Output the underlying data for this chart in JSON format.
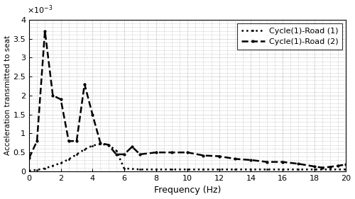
{
  "title": "",
  "xlabel": "Frequency (Hz)",
  "ylabel": "Acceleration transmitted to seat",
  "xlim": [
    0,
    20
  ],
  "ylim": [
    0,
    0.004
  ],
  "yticks": [
    0,
    0.0005,
    0.001,
    0.0015,
    0.002,
    0.0025,
    0.003,
    0.0035,
    0.004
  ],
  "ytick_labels": [
    "0",
    "0.5",
    "1",
    "1.5",
    "2",
    "2.5",
    "3",
    "3.5",
    "4"
  ],
  "xticks": [
    0,
    2,
    4,
    6,
    8,
    10,
    12,
    14,
    16,
    18,
    20
  ],
  "road1_x": [
    0,
    0.5,
    1.0,
    1.5,
    2.0,
    2.5,
    3.0,
    3.5,
    4.0,
    4.5,
    5.0,
    5.5,
    6.0,
    7.0,
    8.0,
    9.0,
    10.0,
    11.0,
    12.0,
    13.0,
    14.0,
    15.0,
    16.0,
    17.0,
    18.0,
    19.0,
    20.0
  ],
  "road1_y": [
    2e-05,
    4e-05,
    8e-05,
    0.00015,
    0.00022,
    0.00032,
    0.00045,
    0.00058,
    0.00068,
    0.00072,
    0.0007,
    0.00055,
    8e-05,
    5e-05,
    5e-05,
    5e-05,
    5e-05,
    5e-05,
    5e-05,
    5e-05,
    5e-05,
    5e-05,
    5e-05,
    5e-05,
    5e-05,
    5e-05,
    5e-05
  ],
  "road2_x": [
    0,
    0.5,
    1.0,
    1.5,
    2.0,
    2.5,
    3.0,
    3.5,
    4.0,
    4.5,
    5.0,
    5.5,
    6.0,
    6.5,
    7.0,
    8.0,
    9.0,
    10.0,
    11.0,
    12.0,
    13.0,
    14.0,
    15.0,
    16.0,
    17.0,
    18.0,
    18.5,
    19.0,
    19.5,
    20.0
  ],
  "road2_y": [
    0.00035,
    0.0008,
    0.0037,
    0.002,
    0.0019,
    0.0008,
    0.0008,
    0.0023,
    0.0015,
    0.00075,
    0.0007,
    0.00045,
    0.00045,
    0.00065,
    0.00045,
    0.0005,
    0.0005,
    0.0005,
    0.00042,
    0.0004,
    0.00033,
    0.0003,
    0.00025,
    0.00025,
    0.0002,
    0.00013,
    0.0001,
    0.00012,
    0.00015,
    0.00018
  ],
  "legend_labels": [
    "Cycle(1)-Road (1)",
    "Cycle(1)-Road (2)"
  ],
  "road1_color": "black",
  "road1_linestyle": "dotted",
  "road1_linewidth": 1.8,
  "road1_marker": ".",
  "road1_markersize": 2,
  "road2_color": "black",
  "road2_linestyle": "dashed",
  "road2_linewidth": 1.8,
  "road2_marker": ".",
  "road2_markersize": 4,
  "background_color": "white",
  "grid_color": "#999999",
  "grid_linestyle": "dotted",
  "grid_linewidth": 0.6
}
